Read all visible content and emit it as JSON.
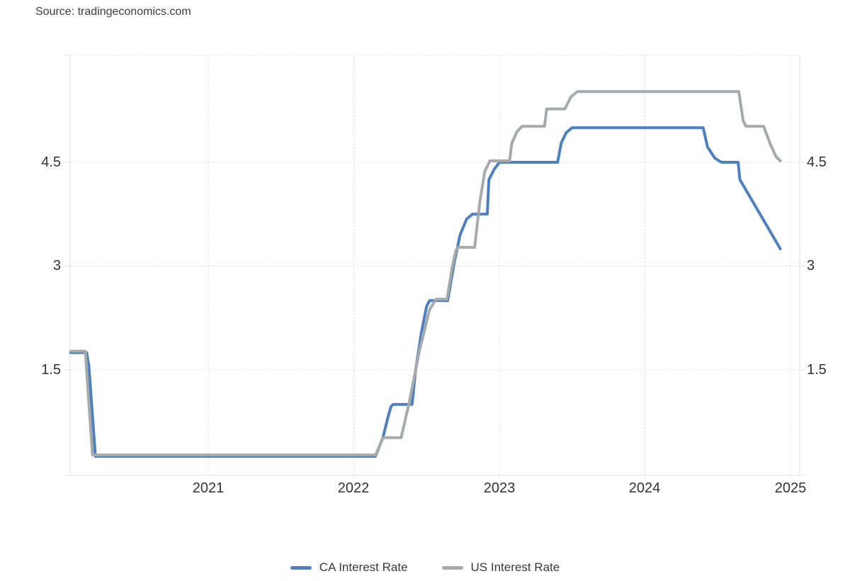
{
  "source": {
    "text": "Source: tradingeconomics.com"
  },
  "chart_data": {
    "type": "line",
    "title": "",
    "xlabel": "",
    "ylabel": "",
    "unit": "percent",
    "x_axis": {
      "ticks": [
        "2021",
        "2022",
        "2023",
        "2024",
        "2025"
      ],
      "range_years": [
        2020.03,
        2025.07
      ]
    },
    "y_axis": {
      "ticks": [
        "4.5",
        "3",
        "1.5"
      ],
      "tick_values": [
        4.5,
        3,
        1.5
      ],
      "range": [
        0,
        6.05
      ],
      "labels_on_both_sides": true
    },
    "grid": {
      "style": "dotted",
      "color": "#dcdcdc",
      "border_color": "#e2e2e2"
    },
    "legend": [
      {
        "label": "CA Interest Rate",
        "color": "#4d80c0"
      },
      {
        "label": "US Interest Rate",
        "color": "#a6aaac"
      }
    ],
    "series": [
      {
        "name": "CA Interest Rate",
        "color": "#4d80c0",
        "points": [
          [
            2020.055,
            1.75
          ],
          [
            2020.165,
            1.75
          ],
          [
            2020.18,
            1.55
          ],
          [
            2020.225,
            0.25
          ],
          [
            2022.148,
            0.25
          ],
          [
            2022.2,
            0.52
          ],
          [
            2022.235,
            0.82
          ],
          [
            2022.255,
            0.97
          ],
          [
            2022.27,
            1.0
          ],
          [
            2022.4,
            1.0
          ],
          [
            2022.425,
            1.5
          ],
          [
            2022.465,
            2.05
          ],
          [
            2022.5,
            2.42
          ],
          [
            2022.52,
            2.5
          ],
          [
            2022.645,
            2.5
          ],
          [
            2022.69,
            3.05
          ],
          [
            2022.73,
            3.45
          ],
          [
            2022.775,
            3.68
          ],
          [
            2022.815,
            3.75
          ],
          [
            2022.917,
            3.75
          ],
          [
            2022.928,
            4.25
          ],
          [
            2022.965,
            4.4
          ],
          [
            2023.0,
            4.5
          ],
          [
            2023.4,
            4.5
          ],
          [
            2023.425,
            4.78
          ],
          [
            2023.46,
            4.93
          ],
          [
            2023.5,
            5.0
          ],
          [
            2024.4,
            5.0
          ],
          [
            2024.43,
            4.72
          ],
          [
            2024.48,
            4.56
          ],
          [
            2024.525,
            4.5
          ],
          [
            2024.64,
            4.5
          ],
          [
            2024.652,
            4.25
          ],
          [
            2024.93,
            3.25
          ]
        ]
      },
      {
        "name": "US Interest Rate",
        "color": "#a6aaac",
        "points": [
          [
            2020.055,
            1.75
          ],
          [
            2020.155,
            1.75
          ],
          [
            2020.205,
            0.25
          ],
          [
            2022.155,
            0.25
          ],
          [
            2022.195,
            0.48
          ],
          [
            2022.21,
            0.5
          ],
          [
            2022.325,
            0.5
          ],
          [
            2022.38,
            1.0
          ],
          [
            2022.45,
            1.75
          ],
          [
            2022.52,
            2.35
          ],
          [
            2022.565,
            2.5
          ],
          [
            2022.64,
            2.5
          ],
          [
            2022.675,
            2.95
          ],
          [
            2022.7,
            3.2
          ],
          [
            2022.715,
            3.25
          ],
          [
            2022.83,
            3.25
          ],
          [
            2022.865,
            3.9
          ],
          [
            2022.9,
            4.35
          ],
          [
            2022.935,
            4.5
          ],
          [
            2023.07,
            4.5
          ],
          [
            2023.085,
            4.75
          ],
          [
            2023.12,
            4.92
          ],
          [
            2023.155,
            5.0
          ],
          [
            2023.31,
            5.0
          ],
          [
            2023.325,
            5.25
          ],
          [
            2023.45,
            5.25
          ],
          [
            2023.49,
            5.42
          ],
          [
            2023.535,
            5.5
          ],
          [
            2024.645,
            5.5
          ],
          [
            2024.675,
            5.08
          ],
          [
            2024.695,
            5.0
          ],
          [
            2024.815,
            5.0
          ],
          [
            2024.86,
            4.75
          ],
          [
            2024.9,
            4.56
          ],
          [
            2024.93,
            4.5
          ]
        ]
      }
    ]
  }
}
